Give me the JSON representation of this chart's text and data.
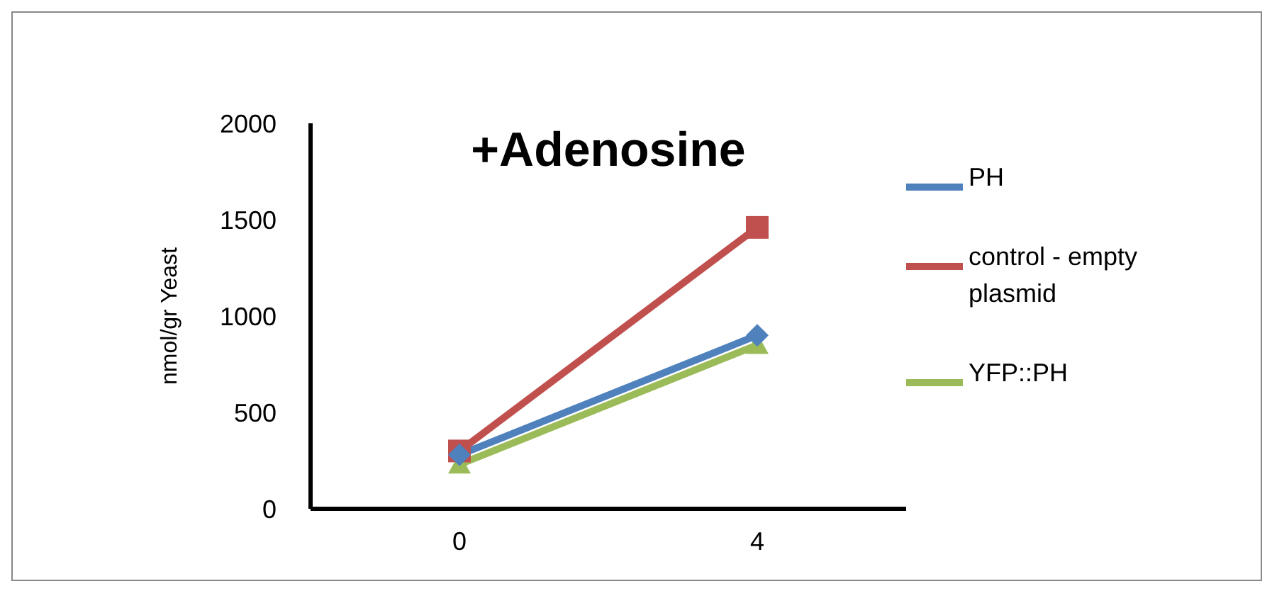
{
  "chart_data": {
    "type": "line",
    "title": "+Adenosine",
    "ylabel": "nmol/gr Yeast",
    "x": [
      0,
      4
    ],
    "xlim": [
      -2,
      6
    ],
    "xticks": [
      0,
      4
    ],
    "series": [
      {
        "name": "PH",
        "color": "#4f81bd",
        "marker": "diamond",
        "values": [
          280,
          900
        ]
      },
      {
        "name": "control - empty plasmid",
        "color": "#c0504d",
        "marker": "square",
        "values": [
          300,
          1460
        ]
      },
      {
        "name": "YFP::PH",
        "color": "#9bbb59",
        "marker": "triangle",
        "values": [
          230,
          850
        ]
      }
    ],
    "ylim": [
      0,
      2000
    ],
    "yticks": [
      0,
      500,
      1000,
      1500,
      2000
    ],
    "grid": false,
    "legend": "right"
  }
}
